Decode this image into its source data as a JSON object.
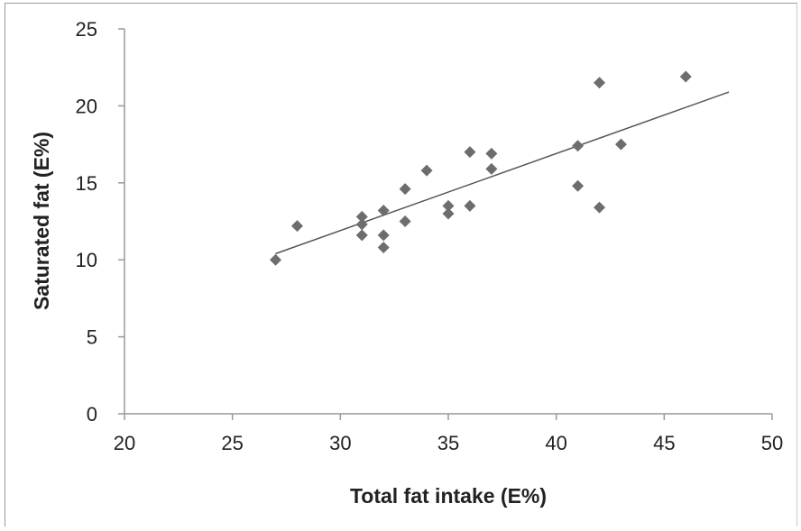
{
  "chart_data": {
    "type": "scatter",
    "xlabel": "Total fat intake (E%)",
    "ylabel": "Saturated fat (E%)",
    "xlim": [
      20,
      50
    ],
    "ylim": [
      0,
      25
    ],
    "xticks": [
      "20",
      "25",
      "30",
      "35",
      "40",
      "45",
      "50"
    ],
    "yticks": [
      "0",
      "5",
      "10",
      "15",
      "20",
      "25"
    ],
    "grid": false,
    "legend": "none",
    "marker": "diamond",
    "colors": {
      "marker": "#6d6d6d",
      "trendline": "#555555",
      "axis": "#999999"
    },
    "points": [
      {
        "x": 27,
        "y": 10.0
      },
      {
        "x": 28,
        "y": 12.2
      },
      {
        "x": 31,
        "y": 12.8
      },
      {
        "x": 31,
        "y": 12.3
      },
      {
        "x": 31,
        "y": 11.6
      },
      {
        "x": 32,
        "y": 13.2
      },
      {
        "x": 32,
        "y": 11.6
      },
      {
        "x": 32,
        "y": 10.8
      },
      {
        "x": 33,
        "y": 14.6
      },
      {
        "x": 33,
        "y": 12.5
      },
      {
        "x": 34,
        "y": 15.8
      },
      {
        "x": 35,
        "y": 13.5
      },
      {
        "x": 35,
        "y": 13.0
      },
      {
        "x": 36,
        "y": 17.0
      },
      {
        "x": 36,
        "y": 13.5
      },
      {
        "x": 37,
        "y": 16.9
      },
      {
        "x": 37,
        "y": 15.9
      },
      {
        "x": 41,
        "y": 17.4
      },
      {
        "x": 41,
        "y": 14.8
      },
      {
        "x": 42,
        "y": 21.5
      },
      {
        "x": 42,
        "y": 13.4
      },
      {
        "x": 43,
        "y": 17.5
      },
      {
        "x": 46,
        "y": 21.9
      }
    ],
    "trendline": {
      "type": "linear",
      "x_start": 27,
      "y_start": 10.4,
      "x_end": 48,
      "y_end": 20.9
    }
  }
}
